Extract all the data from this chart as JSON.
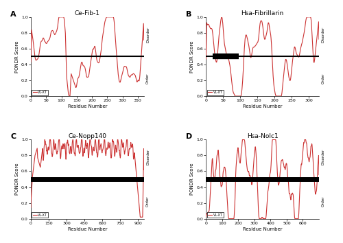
{
  "panels": [
    {
      "label": "A",
      "title": "Ce-Fib-1",
      "xmax": 370,
      "xticks": [
        0,
        50,
        100,
        150,
        200,
        250,
        300,
        350
      ],
      "threshold_lw": 1.5,
      "thick_bar": null
    },
    {
      "label": "B",
      "title": "Hsa-Fibrillarin",
      "xmax": 330,
      "xticks": [
        0,
        50,
        100,
        150,
        200,
        250,
        300
      ],
      "threshold_lw": 1.5,
      "thick_bar": [
        20,
        95
      ]
    },
    {
      "label": "C",
      "title": "Ce-Nopp140",
      "xmax": 950,
      "xticks": [
        0,
        150,
        300,
        450,
        600,
        750,
        900
      ],
      "threshold_lw": 5.0,
      "thick_bar": null
    },
    {
      "label": "D",
      "title": "Hsa-Nolc1",
      "xmax": 700,
      "xticks": [
        0,
        100,
        200,
        300,
        400,
        500,
        600
      ],
      "threshold_lw": 5.0,
      "thick_bar": null
    }
  ],
  "line_color": "#cc3333",
  "threshold_color": "black",
  "ylabel": "PONDR Score",
  "xlabel": "Residue Number",
  "right_label_top": "Disorder",
  "right_label_bottom": "Order",
  "legend_label": "VL-XT",
  "ylim": [
    0.0,
    1.0
  ],
  "yticks": [
    0.0,
    0.2,
    0.4,
    0.6,
    0.8,
    1.0
  ]
}
